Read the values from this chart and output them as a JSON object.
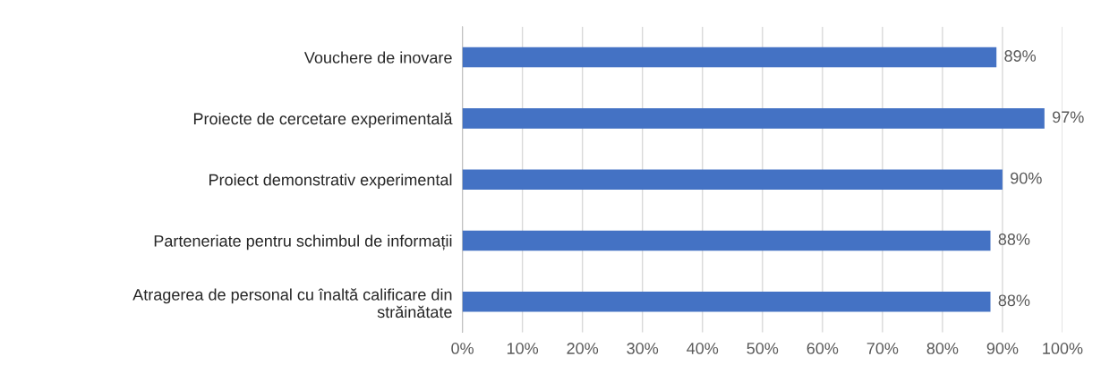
{
  "chart_data": {
    "type": "bar",
    "orientation": "horizontal",
    "categories": [
      "Vouchere de inovare",
      "Proiecte de cercetare experimentală",
      "Proiect demonstrativ experimental",
      "Parteneriate pentru schimbul de informații",
      "Atragerea de personal cu înaltă calificare din\nstrăinătate"
    ],
    "values": [
      89,
      97,
      90,
      88,
      88
    ],
    "value_labels": [
      "89%",
      "97%",
      "90%",
      "88%",
      "88%"
    ],
    "color": "#4472c4",
    "xlim": [
      0,
      100
    ],
    "xticks": [
      {
        "value": 0,
        "label": "0%"
      },
      {
        "value": 10,
        "label": "10%"
      },
      {
        "value": 20,
        "label": "20%"
      },
      {
        "value": 30,
        "label": "30%"
      },
      {
        "value": 40,
        "label": "40%"
      },
      {
        "value": 50,
        "label": "50%"
      },
      {
        "value": 60,
        "label": "60%"
      },
      {
        "value": 70,
        "label": "70%"
      },
      {
        "value": 80,
        "label": "80%"
      },
      {
        "value": 90,
        "label": "90%"
      },
      {
        "value": 100,
        "label": "100%"
      }
    ],
    "grid": "x"
  }
}
